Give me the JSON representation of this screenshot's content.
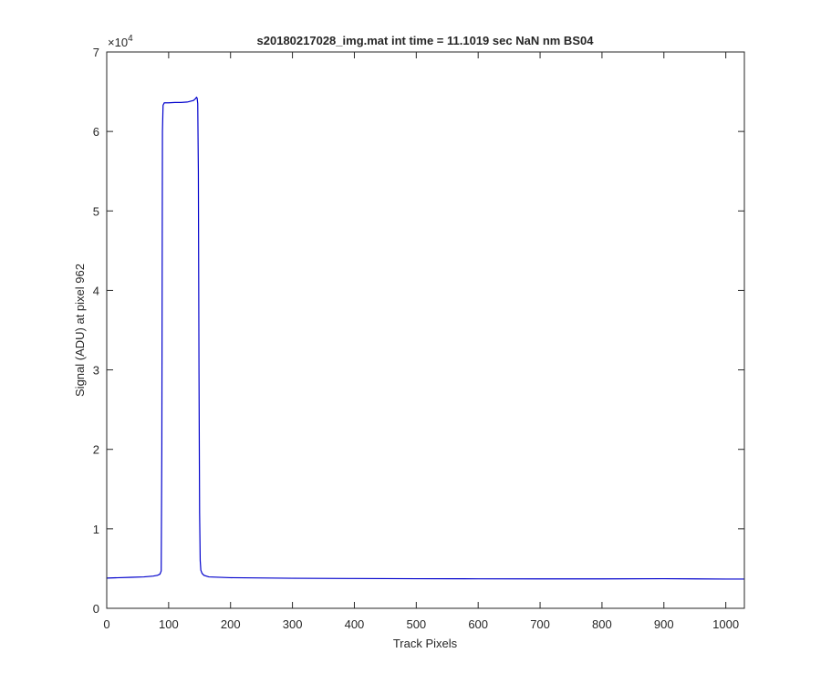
{
  "chart_data": {
    "type": "line",
    "title": "s20180217028_img.mat int time = 11.1019 sec  NaN nm BS04",
    "x_label": "Track Pixels",
    "y_label": "Signal (ADU) at pixel 962",
    "y_multiplier": "×10",
    "y_multiplier_exponent": "4",
    "x": [
      0,
      20,
      40,
      60,
      75,
      82,
      86,
      88,
      89,
      90,
      91,
      93,
      100,
      110,
      120,
      130,
      135,
      140,
      143,
      145,
      146,
      147,
      148,
      149,
      150,
      151,
      152,
      154,
      157,
      165,
      200,
      300,
      400,
      500,
      600,
      700,
      800,
      900,
      1000,
      1030
    ],
    "series": [
      {
        "name": "signal",
        "color": "#0000cc",
        "values": [
          3800,
          3850,
          3900,
          3950,
          4050,
          4150,
          4300,
          4700,
          20000,
          60000,
          63300,
          63600,
          63600,
          63650,
          63650,
          63700,
          63800,
          63900,
          64100,
          64300,
          64200,
          63500,
          55000,
          30000,
          12000,
          6000,
          4800,
          4400,
          4150,
          3950,
          3850,
          3780,
          3750,
          3720,
          3710,
          3700,
          3700,
          3720,
          3680,
          3680
        ]
      }
    ],
    "xlim": [
      0,
      1030
    ],
    "ylim": [
      0,
      70000
    ],
    "xticks": [
      0,
      100,
      200,
      300,
      400,
      500,
      600,
      700,
      800,
      900,
      1000
    ],
    "yticks": [
      {
        "value": 0,
        "label": "0"
      },
      {
        "value": 10000,
        "label": "1"
      },
      {
        "value": 20000,
        "label": "2"
      },
      {
        "value": 30000,
        "label": "3"
      },
      {
        "value": 40000,
        "label": "4"
      },
      {
        "value": 50000,
        "label": "5"
      },
      {
        "value": 60000,
        "label": "6"
      },
      {
        "value": 70000,
        "label": "7"
      }
    ]
  }
}
